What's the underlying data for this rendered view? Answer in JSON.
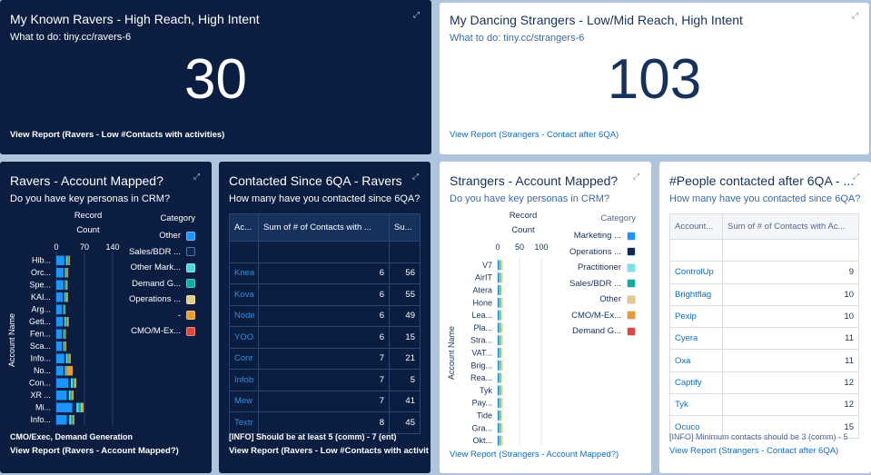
{
  "cards": {
    "ravers_kpi": {
      "title": "My Known Ravers - High Reach, High Intent",
      "subtitle": "What to do: tiny.cc/ravers-6",
      "value": "30",
      "link": "View Report (Ravers - Low #Contacts with activities)",
      "expand_icon": "expand-icon"
    },
    "strangers_kpi": {
      "title": "My Dancing Strangers - Low/Mid Reach, High Intent",
      "subtitle": "What to do: tiny.cc/strangers-6",
      "value": "103",
      "link": "View Report (Strangers - Contact after 6QA)",
      "expand_icon": "expand-icon"
    },
    "ravers_mapped": {
      "title": "Ravers - Account Mapped?",
      "subtitle": "Do you have key personas in CRM?",
      "footnote": "CMO/Exec, Demand Generation",
      "link": "View Report (Ravers - Account Mapped?)"
    },
    "ravers_contacted": {
      "title": "Contacted Since 6QA - Ravers",
      "subtitle": "How many have you contacted since 6QA?",
      "footnote": "[INFO] Should be at least 5 (comm) - 7 (ent)",
      "link": "View Report (Ravers - Low #Contacts with activities)",
      "columns": [
        "Ac...",
        "Sum of # of Contacts with ...",
        "Su..."
      ],
      "rows": [
        {
          "account": "Knea",
          "sum1": "6",
          "sum2": "56"
        },
        {
          "account": "Kova",
          "sum1": "6",
          "sum2": "55"
        },
        {
          "account": "Node",
          "sum1": "6",
          "sum2": "49"
        },
        {
          "account": "YOO",
          "sum1": "6",
          "sum2": "15"
        },
        {
          "account": "Conr",
          "sum1": "7",
          "sum2": "21"
        },
        {
          "account": "Infob",
          "sum1": "7",
          "sum2": "5"
        },
        {
          "account": "Mew",
          "sum1": "7",
          "sum2": "41"
        },
        {
          "account": "Textr",
          "sum1": "8",
          "sum2": "45"
        }
      ]
    },
    "strangers_mapped": {
      "title": "Strangers - Account Mapped?",
      "subtitle": "Do you have key personas in CRM?",
      "link": "View Report (Strangers - Account Mapped?)"
    },
    "strangers_contacted": {
      "title": "#People contacted after 6QA - ...",
      "subtitle": "How many have you contacted since 6QA?",
      "footnote": "[INFO] Minimum contacts should be 3 (comm) - 5",
      "link": "View Report (Strangers - Contact after 6QA)",
      "columns": [
        "Account...",
        "Sum of # of Contacts with Ac..."
      ],
      "rows": [
        {
          "account": "ControlUp",
          "sum": "9"
        },
        {
          "account": "Brightflag",
          "sum": "10"
        },
        {
          "account": "Pexip",
          "sum": "10"
        },
        {
          "account": "Cyera",
          "sum": "11"
        },
        {
          "account": "Oxa",
          "sum": "11"
        },
        {
          "account": "Captify",
          "sum": "12"
        },
        {
          "account": "Tyk",
          "sum": "12"
        },
        {
          "account": "Ocuco",
          "sum": "15"
        }
      ]
    }
  },
  "chart_data": [
    {
      "type": "bar",
      "orientation": "horizontal",
      "stacked": true,
      "title": "Ravers - Account Mapped?",
      "xlabel": "Record Count",
      "ylabel": "Account Name",
      "xlim": [
        0,
        140
      ],
      "xticks": [
        "0",
        "70",
        "140"
      ],
      "legend_title": "Category",
      "legend_position": "right",
      "categories": [
        "Hib...",
        "Orc...",
        "Spe...",
        "KAI...",
        "Arg...",
        "Geti...",
        "Fen...",
        "Sca...",
        "Info...",
        "No...",
        "Con...",
        "XR ...",
        "Mi...",
        "Info..."
      ],
      "series": [
        {
          "name": "Other",
          "color": "#1b96ff",
          "values": [
            20,
            18,
            18,
            16,
            14,
            16,
            14,
            14,
            20,
            18,
            30,
            26,
            40,
            26
          ]
        },
        {
          "name": "Sales/BDR ...",
          "color": "#0d2a57",
          "values": [
            4,
            3,
            3,
            4,
            3,
            4,
            3,
            3,
            4,
            3,
            6,
            5,
            10,
            6
          ]
        },
        {
          "name": "Other Mark...",
          "color": "#4bd8e0",
          "values": [
            4,
            3,
            2,
            3,
            2,
            4,
            2,
            3,
            4,
            3,
            5,
            4,
            6,
            5
          ]
        },
        {
          "name": "Demand G...",
          "color": "#08aea0",
          "values": [
            3,
            2,
            2,
            2,
            2,
            3,
            2,
            2,
            3,
            2,
            4,
            3,
            5,
            4
          ]
        },
        {
          "name": "Operations ...",
          "color": "#e4cc86",
          "values": [
            1,
            1,
            1,
            1,
            1,
            1,
            1,
            1,
            1,
            1,
            2,
            1,
            2,
            1
          ]
        },
        {
          "name": "-",
          "color": "#e99b2e",
          "values": [
            2,
            2,
            2,
            3,
            1,
            3,
            2,
            2,
            4,
            14,
            3,
            4,
            5,
            3
          ]
        },
        {
          "name": "CMO/M-Ex...",
          "color": "#e3453d",
          "values": [
            0,
            1,
            0,
            0,
            0,
            0,
            0,
            0,
            0,
            0,
            0,
            0,
            0,
            0
          ]
        }
      ]
    },
    {
      "type": "bar",
      "orientation": "horizontal",
      "stacked": true,
      "title": "Strangers - Account Mapped?",
      "xlabel": "Record Count",
      "ylabel": "Account Name",
      "xlim": [
        0,
        100
      ],
      "xticks": [
        "0",
        "50",
        "100"
      ],
      "legend_title": "Category",
      "legend_position": "right",
      "categories": [
        "V7",
        "AirIT",
        "Atera",
        "Hone",
        "Lea...",
        "Pla...",
        "Stra...",
        "VAT...",
        "Brig...",
        "Rea...",
        "Tyk",
        "Pay...",
        "Tide",
        "Gra...",
        "Okt..."
      ],
      "series": [
        {
          "name": "Marketing ...",
          "color": "#1b96ff",
          "values": [
            1,
            1,
            1,
            1,
            1,
            1,
            1,
            1,
            1,
            1,
            1,
            1,
            1,
            1,
            1
          ]
        },
        {
          "name": "Operations ...",
          "color": "#0d2a57",
          "values": [
            1,
            1,
            1,
            1,
            1,
            1,
            1,
            1,
            1,
            1,
            1,
            1,
            1,
            1,
            1
          ]
        },
        {
          "name": "Practitioner",
          "color": "#7de3ea",
          "values": [
            2,
            2,
            2,
            2,
            2,
            2,
            2,
            2,
            2,
            2,
            2,
            2,
            2,
            2,
            2
          ]
        },
        {
          "name": "Sales/BDR ...",
          "color": "#08aea0",
          "values": [
            2,
            2,
            2,
            2,
            2,
            2,
            2,
            2,
            2,
            2,
            2,
            2,
            2,
            2,
            2
          ]
        },
        {
          "name": "Other",
          "color": "#e4cc86",
          "values": [
            4,
            4,
            4,
            4,
            4,
            4,
            4,
            4,
            4,
            4,
            4,
            4,
            4,
            4,
            4
          ]
        },
        {
          "name": "CMO/M-Ex...",
          "color": "#e99b2e",
          "values": [
            1,
            1,
            0,
            1,
            0,
            1,
            1,
            0,
            1,
            0,
            1,
            1,
            0,
            1,
            1
          ]
        },
        {
          "name": "Demand G...",
          "color": "#e3453d",
          "values": [
            0,
            0,
            0,
            0,
            0,
            0,
            0,
            0,
            0,
            0,
            0,
            0,
            0,
            0,
            0
          ]
        }
      ]
    }
  ]
}
